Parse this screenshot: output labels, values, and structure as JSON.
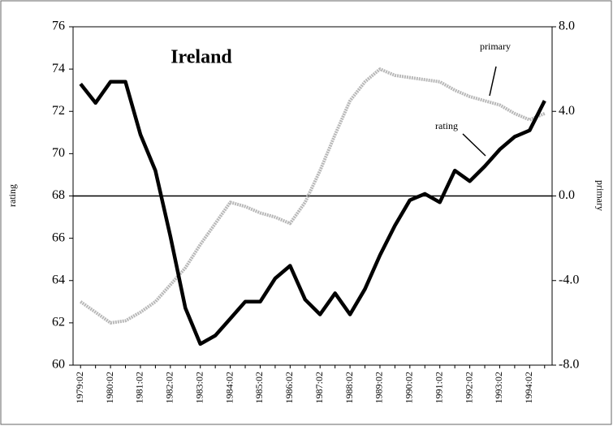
{
  "chart_data": {
    "type": "line",
    "title": "Ireland",
    "y_label": "rating",
    "y2_label": "primary",
    "annotations": [
      "primary",
      "rating"
    ],
    "categories": [
      "1979:02",
      null,
      "1980:02",
      null,
      "1981:02",
      null,
      "1982:02",
      null,
      "1983:02",
      null,
      "1984:02",
      null,
      "1985:02",
      null,
      "1986:02",
      null,
      "1987:02",
      null,
      "1988:02",
      null,
      "1989:02",
      null,
      "1990:02",
      null,
      "1991:02",
      null,
      "1992:02",
      null,
      "1993:02",
      null,
      "1994:02",
      null
    ],
    "series": [
      {
        "name": "rating",
        "color": "#000000",
        "axis": "y",
        "values": [
          73.3,
          72.4,
          73.4,
          73.4,
          70.9,
          69.2,
          66.1,
          62.7,
          61.0,
          61.4,
          62.2,
          63.0,
          63.0,
          64.1,
          64.7,
          63.1,
          62.4,
          63.4,
          62.4,
          63.6,
          65.2,
          66.6,
          67.8,
          68.1,
          67.7,
          69.2,
          68.7,
          69.4,
          70.2,
          70.8,
          71.1,
          72.5
        ]
      },
      {
        "name": "primary",
        "color": "#b8b8b8",
        "axis": "y2",
        "values": [
          -5.0,
          -5.5,
          -6.0,
          -5.9,
          -5.5,
          -5.0,
          -4.2,
          -3.4,
          -2.3,
          -1.3,
          -0.3,
          -0.5,
          -0.8,
          -1.0,
          -1.3,
          -0.3,
          1.2,
          2.9,
          4.5,
          5.4,
          6.0,
          5.7,
          5.6,
          5.5,
          5.4,
          5.0,
          4.7,
          4.5,
          4.3,
          3.9,
          3.6,
          3.9
        ]
      }
    ],
    "reference_line": 68,
    "ylim": [
      60,
      76
    ],
    "yticks": [
      60,
      62,
      64,
      66,
      68,
      70,
      72,
      74,
      76
    ],
    "y2lim": [
      -8,
      8
    ],
    "y2ticks": [
      {
        "value": -8,
        "label": "-8.0"
      },
      {
        "value": -4,
        "label": "-4.0"
      },
      {
        "value": 0,
        "label": "0.0"
      },
      {
        "value": 4,
        "label": "4.0"
      },
      {
        "value": 8,
        "label": "8.0"
      }
    ]
  }
}
